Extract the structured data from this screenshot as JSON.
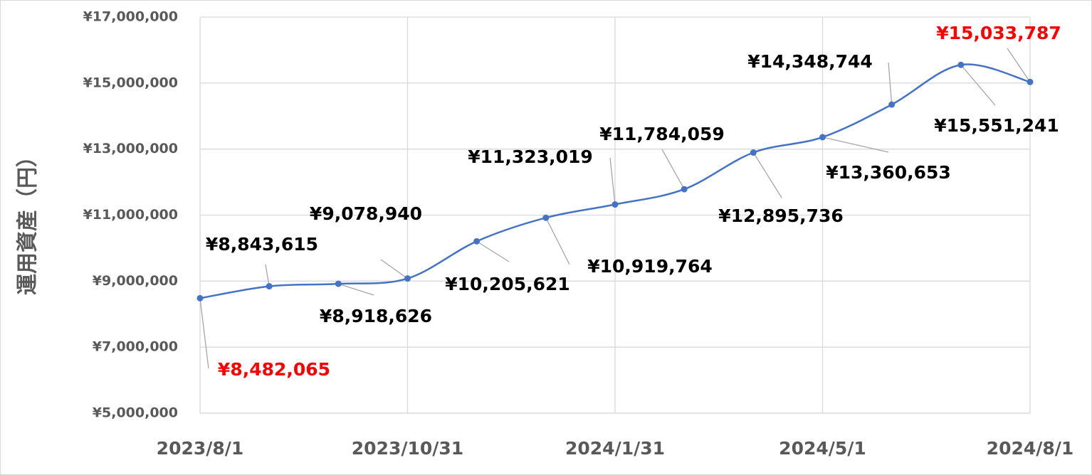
{
  "chart_data": {
    "type": "line",
    "y_axis_title": "運用資産（円）",
    "categories": [
      "2023/8/1",
      null,
      null,
      "2023/10/31",
      null,
      null,
      "2024/1/31",
      null,
      null,
      "2024/5/1",
      null,
      null,
      "2024/8/1"
    ],
    "series": [
      {
        "name": null,
        "color": "#4472c4",
        "values": [
          8482065,
          8843615,
          8918626,
          9078940,
          10205621,
          10919764,
          11323019,
          11784059,
          12895736,
          13360653,
          14348744,
          15551241,
          15033787
        ],
        "value_labels": [
          "¥8,482,065",
          "¥8,843,615",
          "¥8,918,626",
          "¥9,078,940",
          "¥10,205,621",
          "¥10,919,764",
          "¥11,323,019",
          "¥11,784,059",
          "¥12,895,736",
          "¥13,360,653",
          "¥14,348,744",
          "¥15,551,241",
          "¥15,033,787"
        ],
        "value_label_colors": [
          "#ff0000",
          "#000000",
          "#000000",
          "#000000",
          "#000000",
          "#000000",
          "#000000",
          "#000000",
          "#000000",
          "#000000",
          "#000000",
          "#000000",
          "#ff0000"
        ]
      }
    ],
    "ylim": [
      5000000,
      17000000
    ],
    "yticks": [
      {
        "value": 5000000,
        "label": "¥5,000,000"
      },
      {
        "value": 7000000,
        "label": "¥7,000,000"
      },
      {
        "value": 9000000,
        "label": "¥9,000,000"
      },
      {
        "value": 11000000,
        "label": "¥11,000,000"
      },
      {
        "value": 13000000,
        "label": "¥13,000,000"
      },
      {
        "value": 15000000,
        "label": "¥15,000,000"
      },
      {
        "value": 17000000,
        "label": "¥17,000,000"
      }
    ],
    "grid": true,
    "smooth": true
  }
}
